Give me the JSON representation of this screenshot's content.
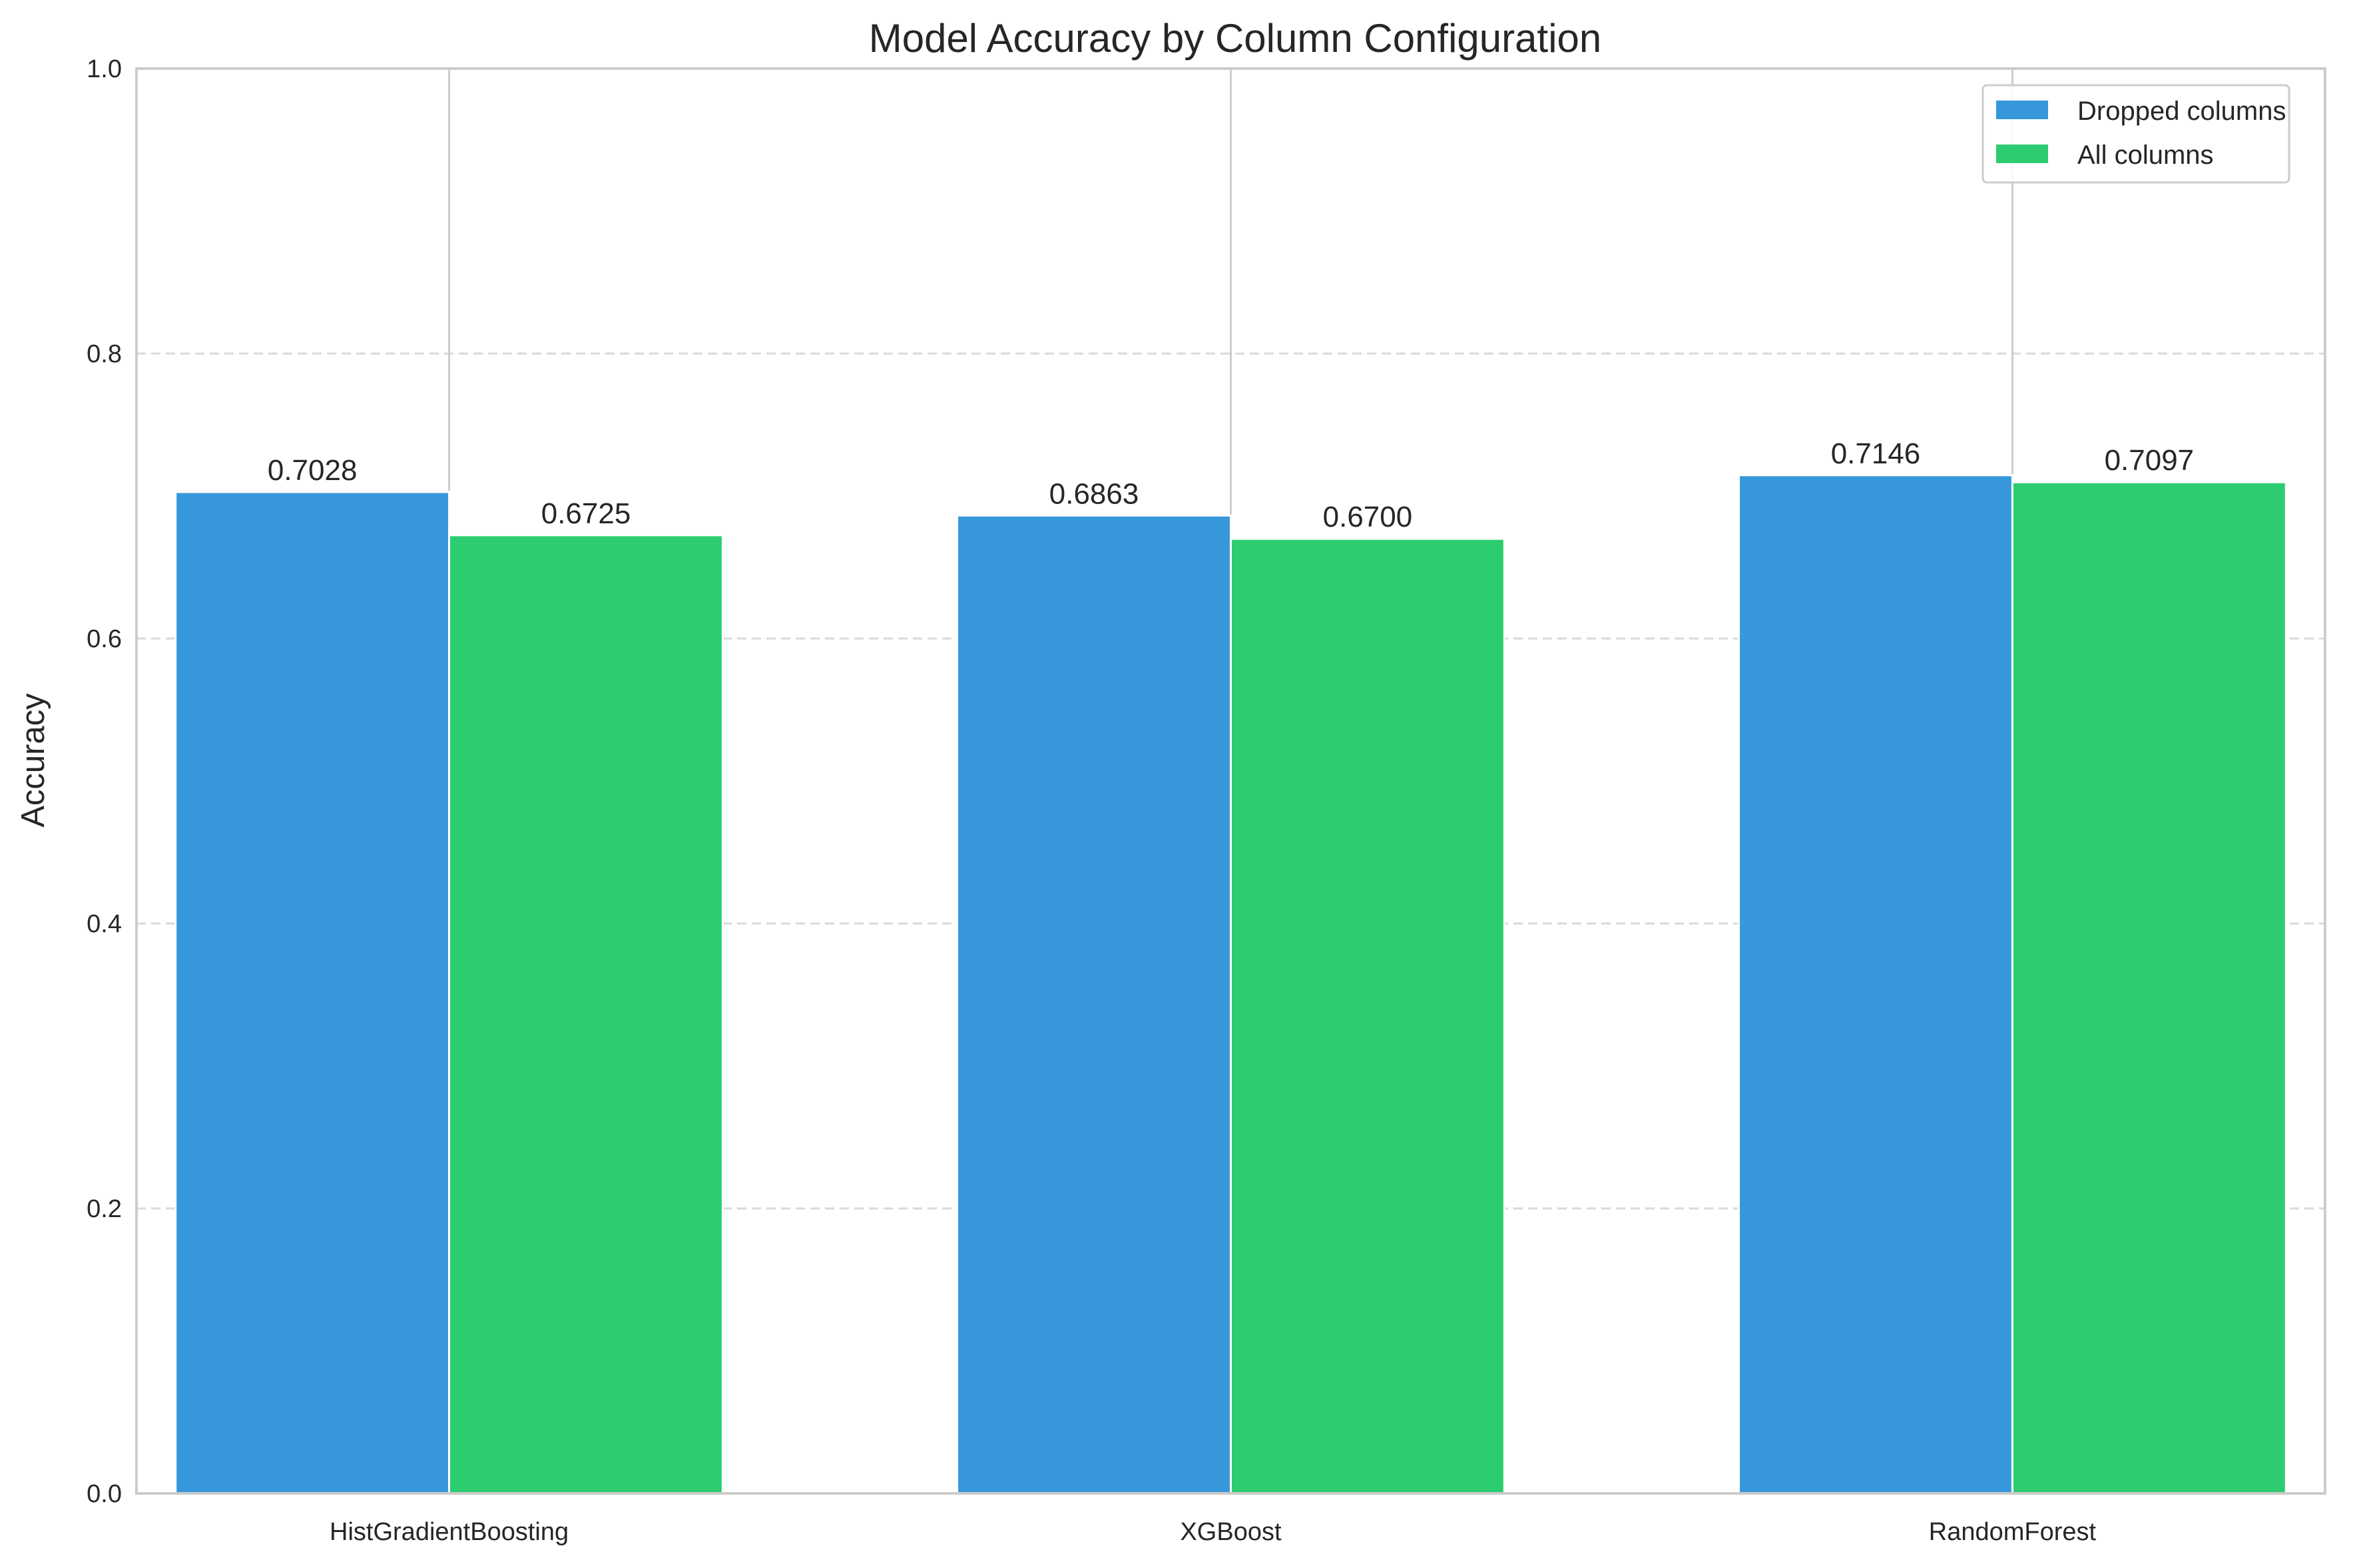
{
  "chart_data": {
    "type": "bar",
    "title": "Model Accuracy by Column Configuration",
    "xlabel": "",
    "ylabel": "Accuracy",
    "categories": [
      "HistGradientBoosting",
      "XGBoost",
      "RandomForest"
    ],
    "series": [
      {
        "name": "Dropped columns",
        "values": [
          0.7028,
          0.6863,
          0.7146
        ],
        "labels": [
          "0.7028",
          "0.6863",
          "0.7146"
        ],
        "color": "#3797db"
      },
      {
        "name": "All columns",
        "values": [
          0.6725,
          0.67,
          0.7097
        ],
        "labels": [
          "0.6725",
          "0.6700",
          "0.7097"
        ],
        "color": "#2ecc71"
      }
    ],
    "ylim": [
      0,
      1.0
    ],
    "yticks": [
      0.0,
      0.2,
      0.4,
      0.6,
      0.8,
      1.0
    ],
    "ytick_labels": [
      "0.0",
      "0.2",
      "0.4",
      "0.6",
      "0.8",
      "1.0"
    ],
    "grid": "y-dashed",
    "legend_position": "top-right"
  }
}
